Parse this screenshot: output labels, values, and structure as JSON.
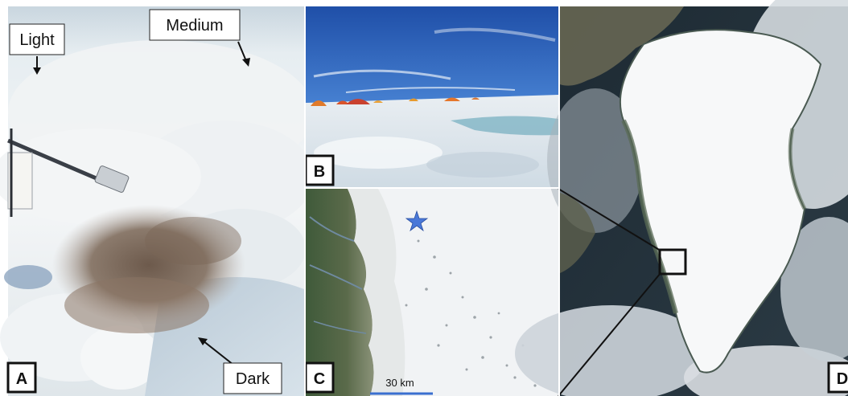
{
  "figure": {
    "panels": [
      {
        "id": "A",
        "letter": "A"
      },
      {
        "id": "B",
        "letter": "B"
      },
      {
        "id": "C",
        "letter": "C"
      },
      {
        "id": "D",
        "letter": "D"
      }
    ],
    "annotations": {
      "light": "Light",
      "medium": "Medium",
      "dark": "Dark"
    },
    "scale_bar": {
      "label": "30 km",
      "color": "#3a6fd0"
    },
    "star_marker": {
      "color": "#4a78d8",
      "icon": "star-icon"
    }
  }
}
